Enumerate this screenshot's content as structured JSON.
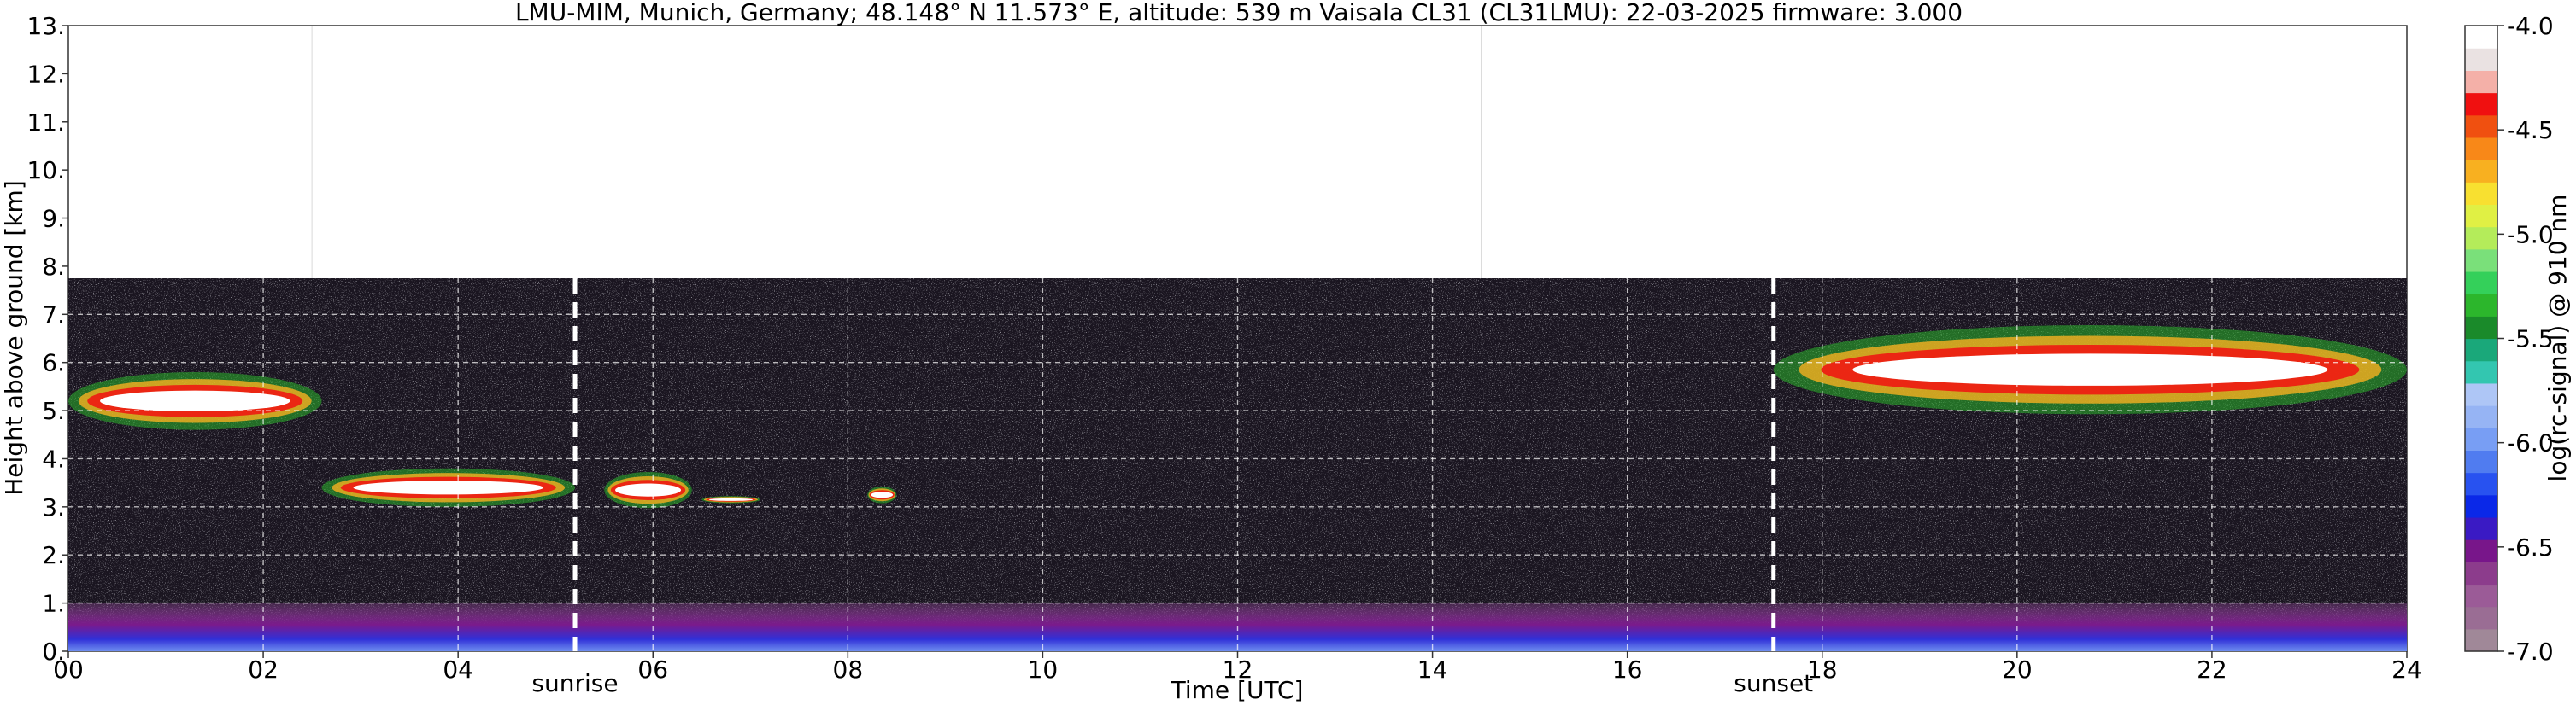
{
  "chart_data": {
    "type": "heatmap",
    "title": "LMU-MIM, Munich, Germany; 48.148° N 11.573° E, altitude: 539 m    Vaisala CL31 (CL31LMU): 22-03-2025    firmware: 3.000",
    "xlabel": "Time [UTC]",
    "ylabel": "Height above ground [km]",
    "xlim": [
      0,
      24
    ],
    "ylim": [
      0,
      13
    ],
    "x_ticks": [
      "00",
      "02",
      "04",
      "06",
      "08",
      "10",
      "12",
      "14",
      "16",
      "18",
      "20",
      "22",
      "24"
    ],
    "y_ticks": [
      "0.",
      "1.",
      "2.",
      "3.",
      "4.",
      "5.",
      "6.",
      "7.",
      "8.",
      "9.",
      "10.",
      "11.",
      "12.",
      "13."
    ],
    "grid": true,
    "data_top_km": 7.75,
    "markers": [
      {
        "label": "sunrise",
        "x": 5.2
      },
      {
        "label": "sunset",
        "x": 17.5
      }
    ],
    "colorbar": {
      "label": "log(rc-signal) @ 910 nm",
      "range": [
        -7.0,
        -4.0
      ],
      "ticks": [
        "-4.0",
        "-4.5",
        "-5.0",
        "-5.5",
        "-6.0",
        "-6.5",
        "-7.0"
      ],
      "colors": [
        "#a08898",
        "#9a6d94",
        "#9b5b97",
        "#8c3c8c",
        "#78168a",
        "#3a1ac4",
        "#0a28e8",
        "#2852f0",
        "#507cf0",
        "#789ef4",
        "#96b4f4",
        "#aec6f6",
        "#33c6b0",
        "#1aa87a",
        "#1a8a2a",
        "#2cb62c",
        "#34d05a",
        "#7ae07a",
        "#b4ec5a",
        "#e0f044",
        "#f8e030",
        "#f8b020",
        "#f88818",
        "#f05010",
        "#f01010",
        "#f4b0a8",
        "#eae2e2",
        "#ffffff"
      ]
    },
    "features": [
      {
        "layer": "cloud",
        "start_h": 0.0,
        "end_h": 2.6,
        "base_km": 4.0,
        "top_km": 6.4
      },
      {
        "layer": "cloud",
        "start_h": 2.6,
        "end_h": 5.2,
        "base_km": 2.6,
        "top_km": 4.2
      },
      {
        "layer": "cloud",
        "start_h": 5.5,
        "end_h": 6.4,
        "base_km": 2.6,
        "top_km": 4.1
      },
      {
        "layer": "cloud",
        "start_h": 6.5,
        "end_h": 7.1,
        "base_km": 3.0,
        "top_km": 3.3
      },
      {
        "layer": "cloud",
        "start_h": 8.2,
        "end_h": 8.5,
        "base_km": 2.9,
        "top_km": 3.6
      },
      {
        "layer": "cloud",
        "start_h": 17.5,
        "end_h": 24.0,
        "base_km": 4.0,
        "top_km": 7.7
      },
      {
        "layer": "boundary",
        "start_h": 0.0,
        "end_h": 24.0,
        "base_km": 0.0,
        "top_km": 1.0
      }
    ]
  }
}
